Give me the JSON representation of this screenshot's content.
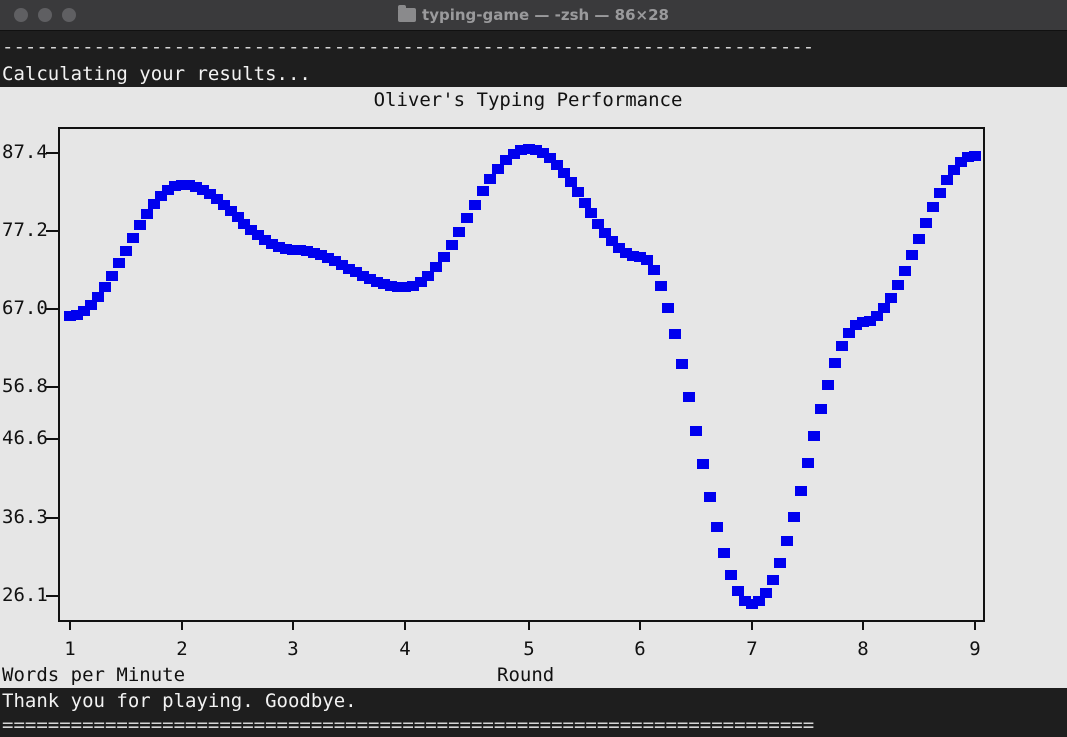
{
  "window": {
    "title": "typing-game — -zsh — 86×28",
    "folder_icon": "folder-icon"
  },
  "terminal": {
    "divider_top": "-----------------------------------------------------------------------",
    "calculating": "Calculating your results...",
    "thanks": "Thank you for playing. Goodbye.",
    "divider_bottom": "======================================================================="
  },
  "chart_data": {
    "type": "line",
    "title": "Oliver's Typing Performance",
    "xlabel": "Round",
    "ylabel": "Words per Minute",
    "x_ticks": [
      "1",
      "2",
      "3",
      "4",
      "5",
      "6",
      "7",
      "8",
      "9"
    ],
    "y_ticks": [
      "87.4",
      "77.2",
      "67.0",
      "56.8",
      "46.6",
      "36.3",
      "26.1"
    ],
    "xlim": [
      1,
      9
    ],
    "ylim": [
      26.1,
      87.4
    ],
    "color": "#0000ee",
    "series": [
      {
        "x": [
          1,
          2,
          3,
          4,
          5,
          6,
          7,
          8,
          9
        ],
        "values": [
          64.8,
          83.0,
          74.0,
          68.8,
          88.0,
          73.0,
          25.0,
          64.0,
          87.0
        ]
      }
    ]
  }
}
